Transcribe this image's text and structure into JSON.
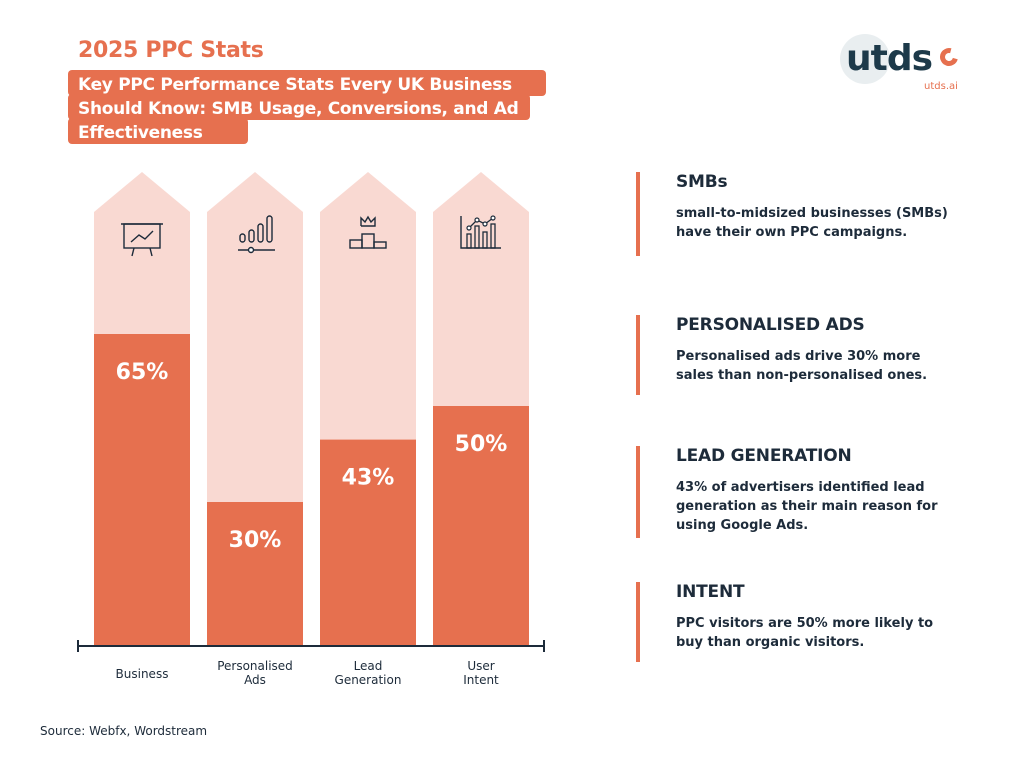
{
  "header": {
    "title": "2025 PPC Stats",
    "subtitle": "Key PPC Performance Stats Every UK Business Should Know: SMB Usage, Conversions, and Ad Effectiveness"
  },
  "logo": {
    "wordmark": "utds",
    "domain": "utds.ai"
  },
  "colors": {
    "accent": "#e6704f",
    "light": "#f9d9d2",
    "dark": "#1d2b3a"
  },
  "chart_data": {
    "type": "bar",
    "categories": [
      "Business",
      "Personalised Ads",
      "Lead Generation",
      "User Intent"
    ],
    "values": [
      65,
      30,
      43,
      50
    ],
    "value_labels": [
      "65%",
      "30%",
      "43%",
      "50%"
    ],
    "icons": [
      "presentation-chart-icon",
      "bar-slider-icon",
      "podium-crown-icon",
      "line-bar-chart-icon"
    ],
    "ylim": [
      0,
      100
    ],
    "grid": false
  },
  "stats": [
    {
      "title": "SMBs",
      "text": "small-to-midsized businesses (SMBs) have their own PPC campaigns."
    },
    {
      "title": "PERSONALISED ADS",
      "text": "Personalised ads drive 30% more sales than non-personalised ones."
    },
    {
      "title": "LEAD GENERATION",
      "text": "43% of advertisers identified lead generation as their main reason for using Google Ads."
    },
    {
      "title": "INTENT",
      "text": "PPC visitors are 50% more likely to buy than organic visitors."
    }
  ],
  "source": "Source: Webfx, Wordstream"
}
